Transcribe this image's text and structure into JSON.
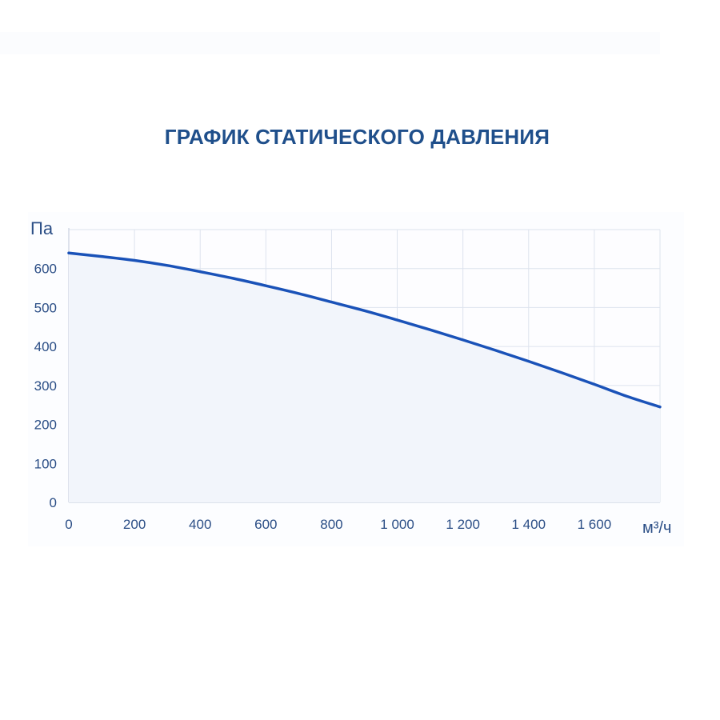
{
  "chart_data": {
    "type": "area",
    "title": "ГРАФИК СТАТИЧЕСКОГО ДАВЛЕНИЯ",
    "xlabel": "м³/ч",
    "ylabel": "Па",
    "xlim": [
      0,
      1800
    ],
    "ylim": [
      0,
      700
    ],
    "x_ticks": [
      0,
      200,
      400,
      600,
      800,
      1000,
      1200,
      1400,
      1600
    ],
    "x_tick_labels": [
      "0",
      "200",
      "400",
      "600",
      "800",
      "1 000",
      "1 200",
      "1 400",
      "1 600"
    ],
    "y_ticks": [
      0,
      100,
      200,
      300,
      400,
      500,
      600
    ],
    "y_tick_labels": [
      "0",
      "100",
      "200",
      "300",
      "400",
      "500",
      "600"
    ],
    "grid": true,
    "legend": false,
    "series": [
      {
        "x": [
          0,
          100,
          200,
          300,
          400,
          500,
          600,
          700,
          800,
          900,
          1000,
          1100,
          1200,
          1300,
          1400,
          1500,
          1600,
          1700,
          1800
        ],
        "y": [
          640,
          631,
          621,
          608,
          592,
          575,
          556,
          536,
          514,
          492,
          468,
          443,
          417,
          390,
          362,
          333,
          303,
          272,
          245
        ]
      }
    ],
    "colors": {
      "title": "#1f4f8b",
      "line": "#1a52b8",
      "fill": "#f2f5fb",
      "grid": "#dde3ee",
      "axis": "#c9d1df",
      "tick_text": "#2b4e86",
      "plot_background": "#fdfdff"
    }
  }
}
